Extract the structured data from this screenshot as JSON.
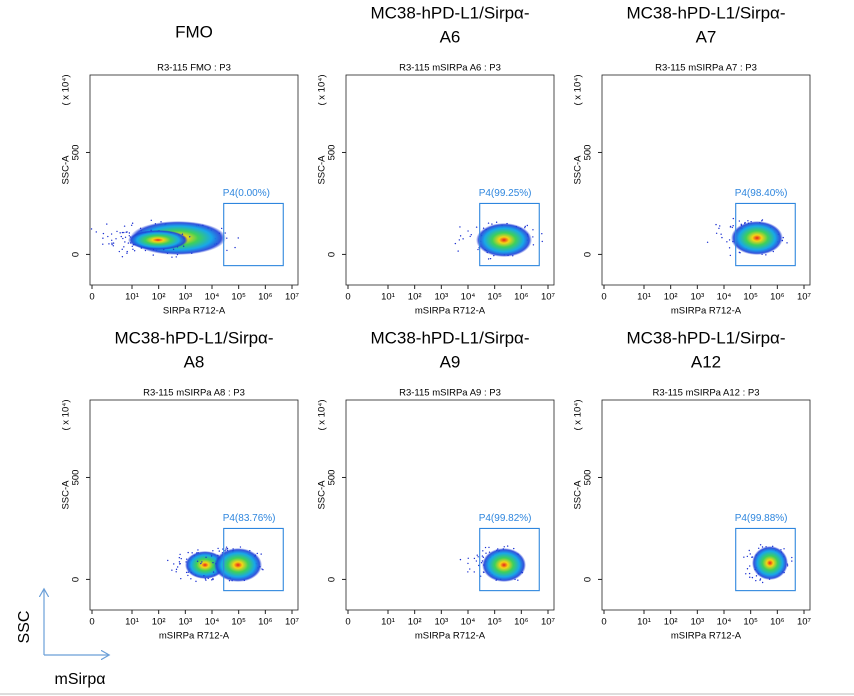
{
  "chart_data": [
    {
      "type": "density",
      "title_lines": [
        "FMO"
      ],
      "plot_title": "R3-115 FMO : P3",
      "x_label": "SIRPa R712-A",
      "y_label": "SSC-A",
      "y_multiplier": "( x 10⁴)",
      "xlim": [
        0,
        10000000
      ],
      "xticks": [
        0,
        {
          "value": 10,
          "label": "10¹"
        },
        {
          "value": 100,
          "label": "10²"
        },
        {
          "value": 1000,
          "label": "10³"
        },
        {
          "value": 10000,
          "label": "10⁴"
        },
        {
          "value": 100000,
          "label": "10⁵"
        },
        {
          "value": 1000000,
          "label": "10⁶"
        },
        {
          "value": 10000000,
          "label": "10⁷"
        }
      ],
      "ylim": [
        -150,
        880
      ],
      "yticks": [
        0,
        500
      ],
      "gate": {
        "label": "P4(0.00%)",
        "x": [
          27500,
          4700000
        ],
        "y": [
          -55,
          250
        ]
      }
    },
    {
      "type": "density",
      "title_lines": [
        "MC38-hPD-L1/Sirpα-",
        "A6"
      ],
      "plot_title": "R3-115 mSIRPa A6 : P3",
      "x_label": "mSIRPa R712-A",
      "y_label": "SSC-A",
      "y_multiplier": "( x 10⁴)",
      "xlim": [
        0,
        10000000
      ],
      "xticks": [
        0,
        {
          "value": 10,
          "label": "10¹"
        },
        {
          "value": 100,
          "label": "10²"
        },
        {
          "value": 1000,
          "label": "10³"
        },
        {
          "value": 10000,
          "label": "10⁴"
        },
        {
          "value": 100000,
          "label": "10⁵"
        },
        {
          "value": 1000000,
          "label": "10⁶"
        },
        {
          "value": 10000000,
          "label": "10⁷"
        }
      ],
      "ylim": [
        -150,
        880
      ],
      "yticks": [
        0,
        500
      ],
      "gate": {
        "label": "P4(99.25%)",
        "x": [
          27500,
          4700000
        ],
        "y": [
          -55,
          250
        ]
      }
    },
    {
      "type": "density",
      "title_lines": [
        "MC38-hPD-L1/Sirpα-",
        "A7"
      ],
      "plot_title": "R3-115 mSIRPa A7 : P3",
      "x_label": "mSIRPa R712-A",
      "y_label": "SSC-A",
      "y_multiplier": "( x 10⁴)",
      "xlim": [
        0,
        10000000
      ],
      "xticks": [
        0,
        {
          "value": 10,
          "label": "10¹"
        },
        {
          "value": 100,
          "label": "10²"
        },
        {
          "value": 1000,
          "label": "10³"
        },
        {
          "value": 10000,
          "label": "10⁴"
        },
        {
          "value": 100000,
          "label": "10⁵"
        },
        {
          "value": 1000000,
          "label": "10⁶"
        },
        {
          "value": 10000000,
          "label": "10⁷"
        }
      ],
      "ylim": [
        -150,
        880
      ],
      "yticks": [
        0,
        500
      ],
      "gate": {
        "label": "P4(98.40%)",
        "x": [
          27500,
          4700000
        ],
        "y": [
          -55,
          250
        ]
      }
    },
    {
      "type": "density",
      "title_lines": [
        "MC38-hPD-L1/Sirpα-",
        "A8"
      ],
      "plot_title": "R3-115 mSIRPa A8 : P3",
      "x_label": "mSIRPa R712-A",
      "y_label": "SSC-A",
      "y_multiplier": "( x 10⁴)",
      "xlim": [
        0,
        10000000
      ],
      "xticks": [
        0,
        {
          "value": 10,
          "label": "10¹"
        },
        {
          "value": 100,
          "label": "10²"
        },
        {
          "value": 1000,
          "label": "10³"
        },
        {
          "value": 10000,
          "label": "10⁴"
        },
        {
          "value": 100000,
          "label": "10⁵"
        },
        {
          "value": 1000000,
          "label": "10⁶"
        },
        {
          "value": 10000000,
          "label": "10⁷"
        }
      ],
      "ylim": [
        -150,
        880
      ],
      "yticks": [
        0,
        500
      ],
      "gate": {
        "label": "P4(83.76%)",
        "x": [
          27500,
          4700000
        ],
        "y": [
          -55,
          250
        ]
      }
    },
    {
      "type": "density",
      "title_lines": [
        "MC38-hPD-L1/Sirpα-",
        "A9"
      ],
      "plot_title": "R3-115 mSIRPa A9 : P3",
      "x_label": "mSIRPa R712-A",
      "y_label": "SSC-A",
      "y_multiplier": "( x 10⁴)",
      "xlim": [
        0,
        10000000
      ],
      "xticks": [
        0,
        {
          "value": 10,
          "label": "10¹"
        },
        {
          "value": 100,
          "label": "10²"
        },
        {
          "value": 1000,
          "label": "10³"
        },
        {
          "value": 10000,
          "label": "10⁴"
        },
        {
          "value": 100000,
          "label": "10⁵"
        },
        {
          "value": 1000000,
          "label": "10⁶"
        },
        {
          "value": 10000000,
          "label": "10⁷"
        }
      ],
      "ylim": [
        -150,
        880
      ],
      "yticks": [
        0,
        500
      ],
      "gate": {
        "label": "P4(99.82%)",
        "x": [
          27500,
          4700000
        ],
        "y": [
          -55,
          250
        ]
      }
    },
    {
      "type": "density",
      "title_lines": [
        "MC38-hPD-L1/Sirpα-",
        "A12"
      ],
      "plot_title": "R3-115 mSIRPa A12 : P3",
      "x_label": "mSIRPa R712-A",
      "y_label": "SSC-A",
      "y_multiplier": "( x 10⁴)",
      "xlim": [
        0,
        10000000
      ],
      "xticks": [
        0,
        {
          "value": 10,
          "label": "10¹"
        },
        {
          "value": 100,
          "label": "10²"
        },
        {
          "value": 1000,
          "label": "10³"
        },
        {
          "value": 10000,
          "label": "10⁴"
        },
        {
          "value": 100000,
          "label": "10⁵"
        },
        {
          "value": 1000000,
          "label": "10⁶"
        },
        {
          "value": 10000000,
          "label": "10⁷"
        }
      ],
      "ylim": [
        -150,
        880
      ],
      "yticks": [
        0,
        500
      ],
      "gate": {
        "label": "P4(99.88%)",
        "x": [
          27500,
          4700000
        ],
        "y": [
          -55,
          250
        ]
      }
    }
  ],
  "axis_key": {
    "y_label": "SSC",
    "x_label": "mSirpα"
  }
}
